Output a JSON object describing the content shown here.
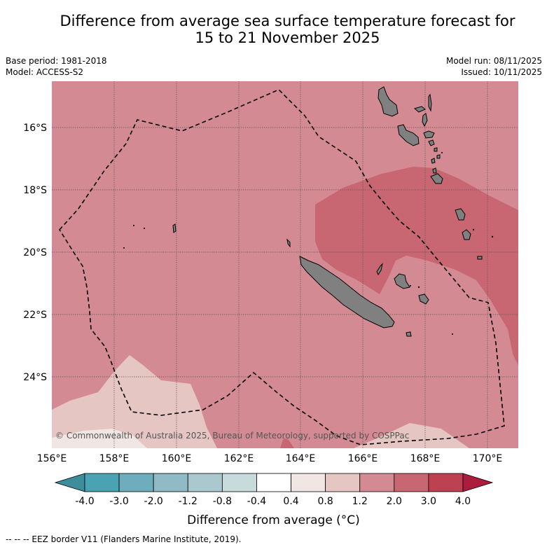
{
  "header": {
    "title_line1": "Difference from average sea surface temperature forecast for",
    "title_line2": "15 to 21 November 2025"
  },
  "meta": {
    "base_period": "Base period: 1981-2018",
    "model": "Model: ACCESS-S2",
    "model_run": "Model run: 08/11/2025",
    "issued": "Issued: 10/11/2025"
  },
  "map": {
    "lat_labels": [
      "16°S",
      "18°S",
      "20°S",
      "22°S",
      "24°S"
    ],
    "lon_labels": [
      "156°E",
      "158°E",
      "160°E",
      "162°E",
      "164°E",
      "166°E",
      "168°E",
      "170°E"
    ],
    "copyright": "© Commonwealth of Australia 2025, Bureau of Meteorology, supported by COSPPac",
    "land_color": "#808080"
  },
  "colorbar": {
    "ticks": [
      "-4.0",
      "-3.0",
      "-2.0",
      "-1.2",
      "-0.8",
      "-0.4",
      "0.4",
      "0.8",
      "1.2",
      "2.0",
      "3.0",
      "4.0"
    ],
    "colors": [
      "#3e8d9c",
      "#49a3b3",
      "#6dadbc",
      "#8fbac6",
      "#aac9ce",
      "#c7dadc",
      "#ffffff",
      "#f0e7e5",
      "#e6c6c2",
      "#d48a92",
      "#c86671",
      "#be4152",
      "#ad1c3d"
    ],
    "label": "Difference from average (°C)"
  },
  "footer": {
    "eez_note": "--  --  -- EEZ border V11 (Flanders Marine Institute, 2019)."
  }
}
